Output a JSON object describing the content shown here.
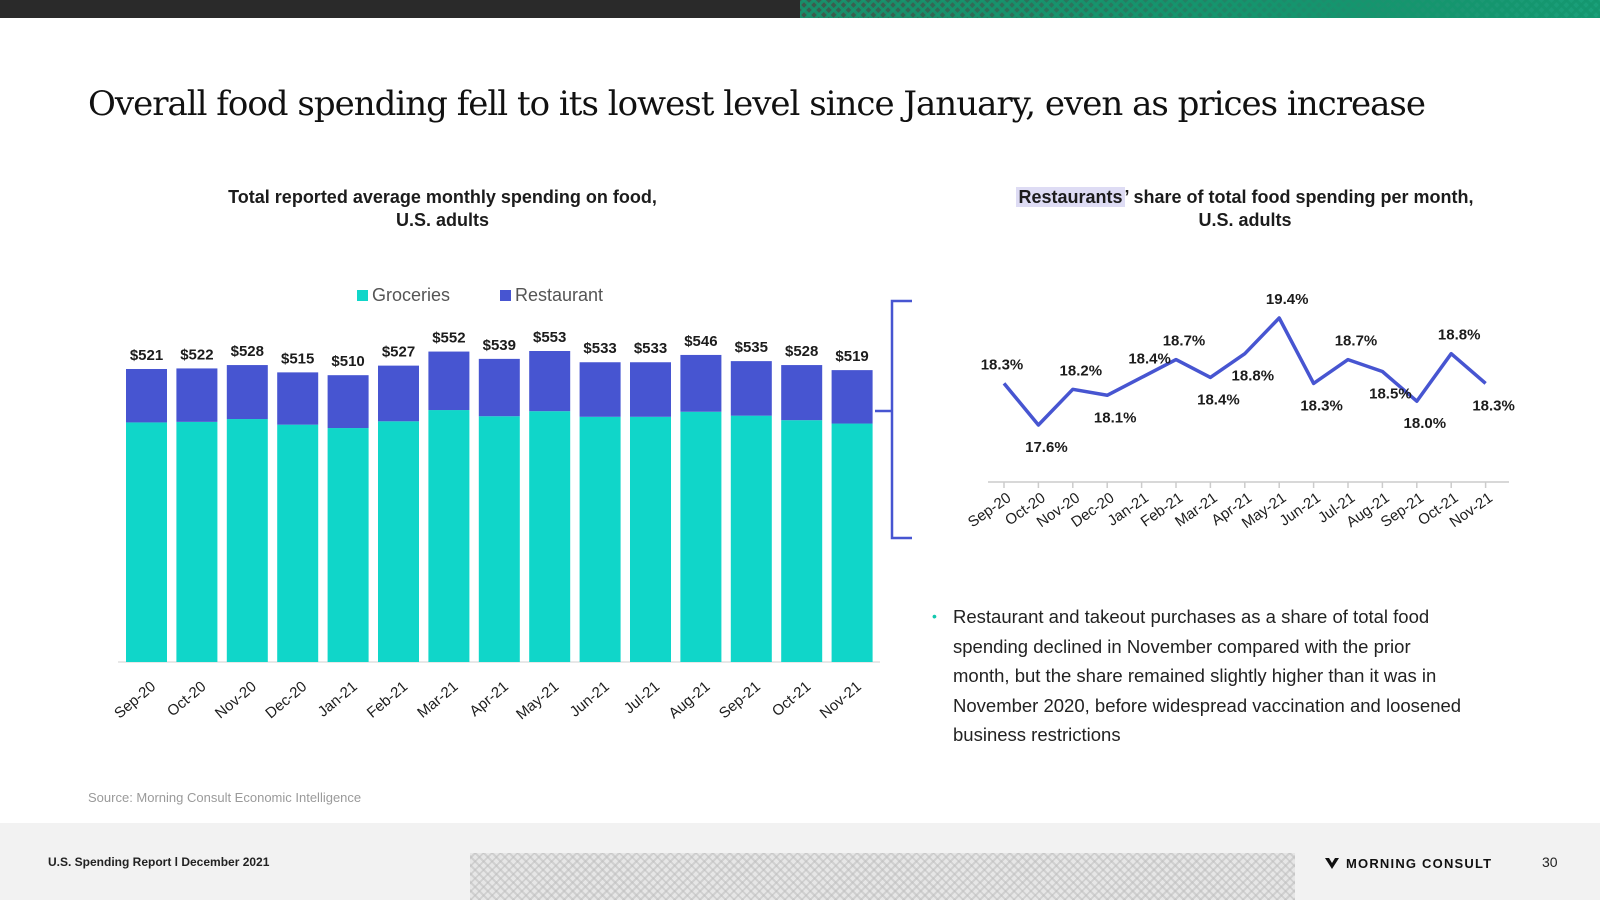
{
  "page": {
    "title": "Overall food spending fell to its lowest level since January, even as prices increase",
    "bullet": "Restaurant and takeout purchases as a share of total food spending declined in November compared with the prior month, but the share remained slightly higher than it was in November 2020, before widespread vaccination and loosened business restrictions",
    "source": "Source: Morning Consult Economic Intelligence",
    "footer_left": "U.S. Spending Report l December 2021",
    "logo_text": "MORNING CONSULT",
    "logo_mark": "morning-consult-mark",
    "page_number": "30"
  },
  "colors": {
    "groceries": "#10d6c9",
    "restaurant": "#4755d1",
    "line": "#4755d1",
    "bracket": "#4755d1"
  },
  "chart_data": [
    {
      "type": "bar",
      "stacked": true,
      "title_line1": "Total reported average monthly spending on food,",
      "title_line2": "U.S. adults",
      "categories": [
        "Sep-20",
        "Oct-20",
        "Nov-20",
        "Dec-20",
        "Jan-21",
        "Feb-21",
        "Mar-21",
        "Apr-21",
        "May-21",
        "Jun-21",
        "Jul-21",
        "Aug-21",
        "Sep-21",
        "Oct-21",
        "Nov-21"
      ],
      "totals": [
        521,
        522,
        528,
        515,
        510,
        527,
        552,
        539,
        553,
        533,
        533,
        546,
        535,
        528,
        519
      ],
      "total_labels": [
        "$521",
        "$522",
        "$528",
        "$515",
        "$510",
        "$527",
        "$552",
        "$539",
        "$553",
        "$533",
        "$533",
        "$546",
        "$535",
        "$528",
        "$519"
      ],
      "series": [
        {
          "name": "Groceries",
          "values": [
            426,
            427,
            432,
            422,
            416,
            428,
            448,
            437,
            446,
            436,
            436,
            445,
            438,
            430,
            424
          ]
        },
        {
          "name": "Restaurant",
          "values": [
            95,
            95,
            96,
            93,
            94,
            99,
            104,
            102,
            107,
            97,
            97,
            101,
            97,
            98,
            95
          ]
        }
      ],
      "ylim": [
        0,
        553
      ],
      "legend": "top-center",
      "grid": false
    },
    {
      "type": "line",
      "title_highlight": "Restaurants",
      "title_rest": "’ share of total food spending per month,",
      "title_line2": "U.S. adults",
      "x": [
        "Sep-20",
        "Oct-20",
        "Nov-20",
        "Dec-20",
        "Jan-21",
        "Feb-21",
        "Mar-21",
        "Apr-21",
        "May-21",
        "Jun-21",
        "Jul-21",
        "Aug-21",
        "Sep-21",
        "Oct-21",
        "Nov-21"
      ],
      "values": [
        18.3,
        17.6,
        18.2,
        18.1,
        18.4,
        18.7,
        18.4,
        18.8,
        19.4,
        18.3,
        18.7,
        18.5,
        18.0,
        18.8,
        18.3
      ],
      "point_labels": [
        "18.3%",
        "17.6%",
        "18.2%",
        "18.1%",
        "18.4%",
        "18.7%",
        "18.4%",
        "18.8%",
        "19.4%",
        "18.3%",
        "18.7%",
        "18.5%",
        "18.0%",
        "18.8%",
        "18.3%"
      ],
      "ylim": [
        17.6,
        19.4
      ],
      "grid": false
    }
  ]
}
